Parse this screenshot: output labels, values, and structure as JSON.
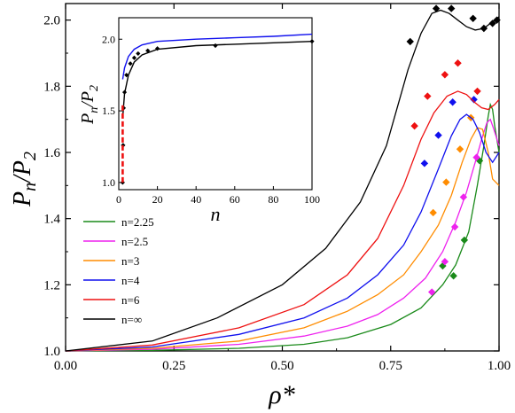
{
  "chart_data": [
    {
      "type": "line",
      "role": "main",
      "xlabel": "ρ*",
      "ylabel": "Pn/P2",
      "xlim": [
        0.0,
        1.0
      ],
      "ylim": [
        1.0,
        2.05
      ],
      "xticks": [
        "0.00",
        "0.25",
        "0.50",
        "0.75",
        "1.00"
      ],
      "yticks": [
        "1.0",
        "1.2",
        "1.4",
        "1.6",
        "1.8",
        "2.0"
      ],
      "legend": {
        "placement": "lower-left",
        "entries": [
          "n=2.25",
          "n=2.5",
          "n=3",
          "n=4",
          "n=6",
          "n=∞"
        ]
      },
      "series": [
        {
          "name": "n=2.25",
          "color": "#1a8a1a",
          "curve": [
            [
              0.0,
              1.0
            ],
            [
              0.2,
              1.002
            ],
            [
              0.4,
              1.008
            ],
            [
              0.55,
              1.02
            ],
            [
              0.65,
              1.04
            ],
            [
              0.75,
              1.08
            ],
            [
              0.82,
              1.13
            ],
            [
              0.87,
              1.2
            ],
            [
              0.9,
              1.26
            ],
            [
              0.93,
              1.36
            ],
            [
              0.95,
              1.5
            ],
            [
              0.965,
              1.62
            ],
            [
              0.975,
              1.71
            ],
            [
              0.98,
              1.745
            ],
            [
              0.985,
              1.73
            ],
            [
              0.99,
              1.68
            ],
            [
              1.0,
              1.6
            ]
          ],
          "markers": [
            [
              0.87,
              1.257
            ],
            [
              0.895,
              1.227
            ],
            [
              0.92,
              1.335
            ],
            [
              0.955,
              1.575
            ]
          ]
        },
        {
          "name": "n=2.5",
          "color": "#ee22ee",
          "curve": [
            [
              0.0,
              1.0
            ],
            [
              0.2,
              1.005
            ],
            [
              0.4,
              1.02
            ],
            [
              0.55,
              1.045
            ],
            [
              0.65,
              1.075
            ],
            [
              0.72,
              1.11
            ],
            [
              0.78,
              1.16
            ],
            [
              0.83,
              1.22
            ],
            [
              0.87,
              1.3
            ],
            [
              0.9,
              1.39
            ],
            [
              0.925,
              1.48
            ],
            [
              0.945,
              1.57
            ],
            [
              0.96,
              1.64
            ],
            [
              0.972,
              1.69
            ],
            [
              0.98,
              1.7
            ],
            [
              0.988,
              1.67
            ],
            [
              1.0,
              1.62
            ]
          ],
          "markers": [
            [
              0.845,
              1.178
            ],
            [
              0.875,
              1.27
            ],
            [
              0.898,
              1.375
            ],
            [
              0.918,
              1.465
            ],
            [
              0.948,
              1.585
            ]
          ]
        },
        {
          "name": "n=3",
          "color": "#ff8c00",
          "curve": [
            [
              0.0,
              1.0
            ],
            [
              0.2,
              1.008
            ],
            [
              0.4,
              1.03
            ],
            [
              0.55,
              1.07
            ],
            [
              0.65,
              1.12
            ],
            [
              0.72,
              1.17
            ],
            [
              0.78,
              1.23
            ],
            [
              0.82,
              1.3
            ],
            [
              0.86,
              1.38
            ],
            [
              0.89,
              1.47
            ],
            [
              0.915,
              1.57
            ],
            [
              0.935,
              1.64
            ],
            [
              0.95,
              1.675
            ],
            [
              0.962,
              1.67
            ],
            [
              0.975,
              1.6
            ],
            [
              0.985,
              1.52
            ],
            [
              1.0,
              1.5
            ]
          ],
          "markers": [
            [
              0.848,
              1.418
            ],
            [
              0.878,
              1.51
            ],
            [
              0.91,
              1.61
            ],
            [
              0.935,
              1.705
            ]
          ]
        },
        {
          "name": "n=4",
          "color": "#1010ee",
          "curve": [
            [
              0.0,
              1.0
            ],
            [
              0.2,
              1.012
            ],
            [
              0.4,
              1.05
            ],
            [
              0.55,
              1.1
            ],
            [
              0.65,
              1.16
            ],
            [
              0.72,
              1.23
            ],
            [
              0.78,
              1.32
            ],
            [
              0.82,
              1.42
            ],
            [
              0.86,
              1.55
            ],
            [
              0.89,
              1.65
            ],
            [
              0.91,
              1.7
            ],
            [
              0.925,
              1.715
            ],
            [
              0.94,
              1.7
            ],
            [
              0.955,
              1.66
            ],
            [
              0.97,
              1.6
            ],
            [
              0.985,
              1.57
            ],
            [
              1.0,
              1.6
            ]
          ],
          "markers": [
            [
              0.828,
              1.567
            ],
            [
              0.86,
              1.652
            ],
            [
              0.893,
              1.752
            ],
            [
              0.942,
              1.76
            ]
          ]
        },
        {
          "name": "n=6",
          "color": "#ee1111",
          "curve": [
            [
              0.0,
              1.0
            ],
            [
              0.2,
              1.018
            ],
            [
              0.4,
              1.07
            ],
            [
              0.55,
              1.14
            ],
            [
              0.65,
              1.23
            ],
            [
              0.72,
              1.34
            ],
            [
              0.78,
              1.5
            ],
            [
              0.82,
              1.64
            ],
            [
              0.85,
              1.72
            ],
            [
              0.88,
              1.77
            ],
            [
              0.905,
              1.785
            ],
            [
              0.925,
              1.775
            ],
            [
              0.945,
              1.75
            ],
            [
              0.96,
              1.735
            ],
            [
              0.975,
              1.73
            ],
            [
              0.99,
              1.745
            ],
            [
              1.0,
              1.76
            ]
          ],
          "markers": [
            [
              0.805,
              1.68
            ],
            [
              0.835,
              1.77
            ],
            [
              0.875,
              1.835
            ],
            [
              0.905,
              1.87
            ],
            [
              0.95,
              1.785
            ]
          ]
        },
        {
          "name": "n=∞",
          "color": "#000000",
          "curve": [
            [
              0.0,
              1.0
            ],
            [
              0.2,
              1.03
            ],
            [
              0.35,
              1.1
            ],
            [
              0.5,
              1.2
            ],
            [
              0.6,
              1.31
            ],
            [
              0.68,
              1.45
            ],
            [
              0.74,
              1.62
            ],
            [
              0.79,
              1.85
            ],
            [
              0.82,
              1.96
            ],
            [
              0.845,
              2.02
            ],
            [
              0.865,
              2.03
            ],
            [
              0.885,
              2.02
            ],
            [
              0.905,
              2.0
            ],
            [
              0.925,
              1.98
            ],
            [
              0.945,
              1.97
            ],
            [
              0.965,
              1.975
            ],
            [
              0.98,
              1.99
            ],
            [
              1.0,
              2.01
            ]
          ],
          "markers": [
            [
              0.795,
              1.935
            ],
            [
              0.855,
              2.035
            ],
            [
              0.89,
              2.035
            ],
            [
              0.94,
              2.005
            ],
            [
              0.965,
              1.975
            ],
            [
              0.985,
              1.99
            ],
            [
              0.995,
              2.0
            ]
          ]
        }
      ]
    },
    {
      "type": "line",
      "role": "inset",
      "xlabel": "n",
      "ylabel": "Pn/P2",
      "xlim": [
        0,
        100
      ],
      "ylim": [
        0.95,
        2.15
      ],
      "xticks": [
        "0",
        "20",
        "40",
        "60",
        "80",
        "100"
      ],
      "yticks": [
        "1.0",
        "1.5",
        "2.0"
      ],
      "series": [
        {
          "color": "#1010ee",
          "curve": [
            [
              2,
              1.72
            ],
            [
              3,
              1.8
            ],
            [
              5,
              1.88
            ],
            [
              8,
              1.93
            ],
            [
              12,
              1.96
            ],
            [
              20,
              1.985
            ],
            [
              40,
              2.0
            ],
            [
              60,
              2.01
            ],
            [
              80,
              2.02
            ],
            [
              100,
              2.035
            ]
          ]
        },
        {
          "color": "#000000",
          "curve": [
            [
              2,
              1.45
            ],
            [
              3,
              1.62
            ],
            [
              5,
              1.75
            ],
            [
              8,
              1.84
            ],
            [
              12,
              1.89
            ],
            [
              20,
              1.93
            ],
            [
              40,
              1.955
            ],
            [
              60,
              1.965
            ],
            [
              80,
              1.975
            ],
            [
              100,
              1.985
            ]
          ],
          "markers": [
            [
              2,
              1.0
            ],
            [
              2.25,
              1.26
            ],
            [
              2.5,
              1.52
            ],
            [
              3,
              1.63
            ],
            [
              4,
              1.75
            ],
            [
              6,
              1.83
            ],
            [
              8,
              1.87
            ],
            [
              10,
              1.9
            ],
            [
              15,
              1.92
            ],
            [
              20,
              1.935
            ],
            [
              50,
              1.955
            ],
            [
              100,
              1.985
            ]
          ]
        },
        {
          "color": "#ee1111",
          "style": "dashed",
          "curve": [
            [
              2,
              1.0
            ],
            [
              2,
              1.55
            ]
          ]
        }
      ]
    }
  ]
}
